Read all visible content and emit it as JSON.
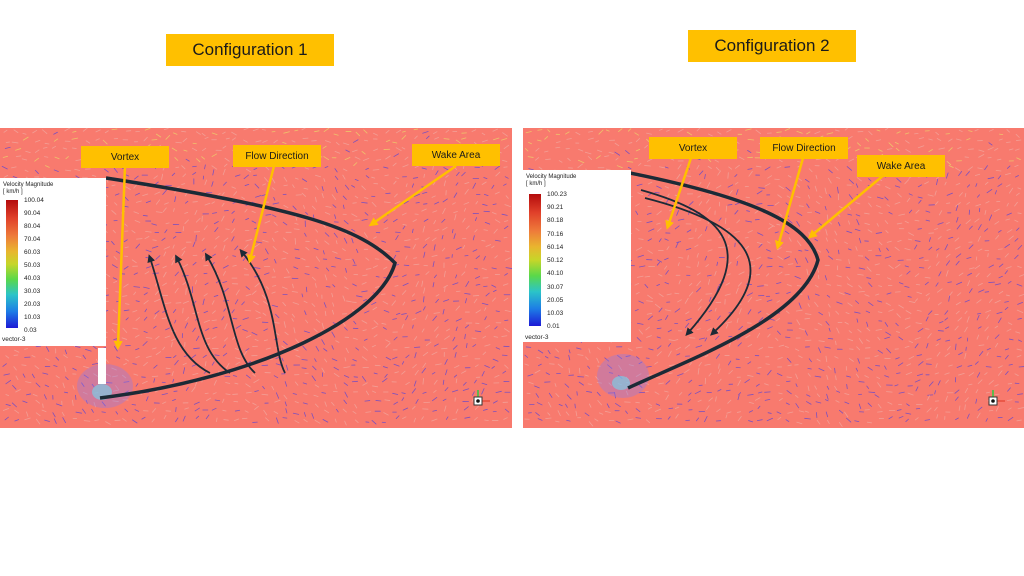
{
  "configurations": [
    {
      "title": "Configuration 1",
      "legend": {
        "title": "Velocity Magnitude",
        "unit": "[ km/h ]",
        "ticks": [
          "100.04",
          "90.04",
          "80.04",
          "70.04",
          "60.03",
          "50.03",
          "40.03",
          "30.03",
          "20.03",
          "10.03",
          "0.03"
        ],
        "vector_label": "vector-3"
      },
      "callouts": {
        "vortex": "Vortex",
        "flow": "Flow Direction",
        "wake": "Wake Area"
      }
    },
    {
      "title": "Configuration 2",
      "legend": {
        "title": "Velocity Magnitude",
        "unit": "[ km/h ]",
        "ticks": [
          "100.23",
          "90.21",
          "80.18",
          "70.16",
          "60.14",
          "50.12",
          "40.10",
          "30.07",
          "20.05",
          "10.03",
          "0.01"
        ],
        "vector_label": "vector-3"
      },
      "callouts": {
        "vortex": "Vortex",
        "flow": "Flow Direction",
        "wake": "Wake Area"
      }
    }
  ],
  "colors": {
    "background_flow": "#f87a6e",
    "vector_blue": "#3a3ae0",
    "callout_fill": "#ffc000",
    "outline": "#1c2a36"
  }
}
